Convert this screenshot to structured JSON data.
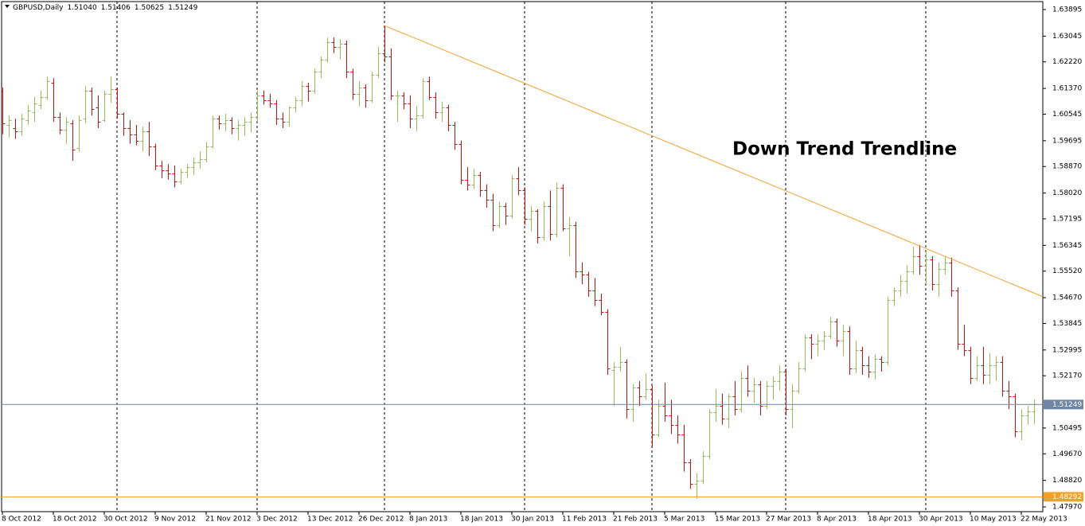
{
  "chart_data": {
    "type": "ohlc",
    "symbol": "GBPUSD,Daily",
    "ohlc_labels": [
      "1.51040",
      "1.51406",
      "1.50625",
      "1.51249"
    ],
    "annotation": "Down Trend Trendline",
    "up_color": "#9bbb59",
    "down_color": "#d01010",
    "ylim": [
      1.47817,
      1.6415
    ],
    "yticks": [
      1.63895,
      1.63045,
      {
        "value": 1.6222,
        "label": "1.62220"
      },
      {
        "value": 1.6137,
        "label": "1.61370"
      },
      1.60545,
      1.59695,
      {
        "value": 1.5887,
        "label": "1.58870"
      },
      {
        "value": 1.5802,
        "label": "1.58020"
      },
      1.57195,
      1.56345,
      {
        "value": 1.5552,
        "label": "1.55520"
      },
      {
        "value": 1.5467,
        "label": "1.54670"
      },
      1.53845,
      1.52995,
      {
        "value": 1.5217,
        "label": "1.52170"
      },
      1.50495,
      {
        "value": 1.4967,
        "label": "1.49670"
      },
      {
        "value": 1.4882,
        "label": "1.48820"
      },
      {
        "value": 1.4797,
        "label": "1.47970"
      }
    ],
    "hlines": [
      {
        "value": 1.51249,
        "color": "#6f86a6"
      },
      {
        "value": 1.48292,
        "color": "#f4a020"
      }
    ],
    "trendline": {
      "points": [
        [
          60,
          1.6338
        ],
        [
          163.4,
          1.547
        ]
      ],
      "color": "#f0a030"
    },
    "separators": [
      18,
      40,
      60,
      82,
      102,
      123,
      145
    ],
    "categories": [
      "8 Oct 2012",
      null,
      null,
      null,
      null,
      null,
      null,
      null,
      "18 Oct 2012",
      null,
      null,
      null,
      null,
      null,
      null,
      null,
      "30 Oct 2012",
      null,
      null,
      null,
      null,
      null,
      null,
      null,
      "9 Nov 2012",
      null,
      null,
      null,
      null,
      null,
      null,
      null,
      "21 Nov 2012",
      null,
      null,
      null,
      null,
      null,
      null,
      null,
      "3 Dec 2012",
      null,
      null,
      null,
      null,
      null,
      null,
      null,
      "13 Dec 2012",
      null,
      null,
      null,
      null,
      null,
      null,
      null,
      "26 Dec 2012",
      null,
      null,
      null,
      null,
      null,
      null,
      null,
      "8 Jan 2013",
      null,
      null,
      null,
      null,
      null,
      null,
      null,
      "18 Jan 2013",
      null,
      null,
      null,
      null,
      null,
      null,
      null,
      "30 Jan 2013",
      null,
      null,
      null,
      null,
      null,
      null,
      null,
      "11 Feb 2013",
      null,
      null,
      null,
      null,
      null,
      null,
      null,
      "21 Feb 2013",
      null,
      null,
      null,
      null,
      null,
      null,
      null,
      "5 Mar 2013",
      null,
      null,
      null,
      null,
      null,
      null,
      null,
      "15 Mar 2013",
      null,
      null,
      null,
      null,
      null,
      null,
      null,
      "27 Mar 2013",
      null,
      null,
      null,
      null,
      null,
      null,
      null,
      "8 Apr 2013",
      null,
      null,
      null,
      null,
      null,
      null,
      null,
      "18 Apr 2013",
      null,
      null,
      null,
      null,
      null,
      null,
      null,
      "30 Apr 2013",
      null,
      null,
      null,
      null,
      null,
      null,
      null,
      "10 May 2013",
      null,
      null,
      null,
      null,
      null,
      null,
      null,
      "22 May 2013",
      null,
      null
    ],
    "open": [
      1.613,
      1.602,
      1.601,
      1.6,
      1.6035,
      1.606,
      1.6085,
      1.611,
      1.6155,
      1.6045,
      1.6005,
      1.6025,
      1.5945,
      1.604,
      1.613,
      1.6075,
      1.6035,
      1.612,
      1.6135,
      1.6055,
      1.601,
      1.599,
      1.597,
      1.6,
      1.595,
      1.589,
      1.5875,
      1.5865,
      1.584,
      1.587,
      1.5885,
      1.59,
      1.591,
      1.595,
      1.604,
      1.6025,
      1.6035,
      1.601,
      1.602,
      1.603,
      1.6045,
      1.6115,
      1.61,
      1.609,
      1.604,
      1.603,
      1.6075,
      1.61,
      1.6145,
      1.613,
      1.619,
      1.623,
      1.6285,
      1.627,
      1.628,
      1.619,
      1.612,
      1.614,
      1.61,
      1.618,
      1.625,
      1.624,
      1.6115,
      1.6115,
      1.609,
      1.604,
      1.605,
      1.616,
      1.611,
      1.606,
      1.6075,
      1.602,
      1.596,
      1.5845,
      1.583,
      1.586,
      1.581,
      1.578,
      1.57,
      1.576,
      1.573,
      1.585,
      1.581,
      1.572,
      1.5745,
      1.566,
      1.576,
      1.567,
      1.582,
      1.569,
      1.57,
      1.555,
      1.554,
      1.549,
      1.546,
      1.542,
      1.5235,
      1.5245,
      1.526,
      1.511,
      1.518,
      1.515,
      1.5175,
      1.503,
      1.512,
      1.509,
      1.506,
      1.503,
      1.494,
      1.487,
      1.488,
      1.496,
      1.51,
      1.512,
      1.508,
      1.515,
      1.511,
      1.521,
      1.517,
      1.519,
      1.512,
      1.5185,
      1.52,
      1.523,
      1.511,
      1.517,
      1.524,
      1.534,
      1.532,
      1.533,
      1.5345,
      1.539,
      1.533,
      1.536,
      1.524,
      1.53,
      1.525,
      1.523,
      1.527,
      1.526,
      1.546,
      1.549,
      1.552,
      1.555,
      1.56,
      1.557,
      1.559,
      1.551,
      1.556,
      1.558,
      1.549,
      1.532,
      1.53,
      1.521,
      1.525,
      1.522,
      1.525,
      1.526,
      1.517,
      1.515,
      1.504,
      1.509,
      1.5104
    ],
    "high": [
      1.614,
      1.605,
      1.604,
      1.6055,
      1.6085,
      1.611,
      1.613,
      1.6175,
      1.617,
      1.606,
      1.6045,
      1.6035,
      1.605,
      1.6145,
      1.614,
      1.6115,
      1.613,
      1.6175,
      1.614,
      1.606,
      1.6035,
      1.602,
      1.6015,
      1.603,
      1.596,
      1.5905,
      1.5895,
      1.589,
      1.588,
      1.5895,
      1.5915,
      1.5935,
      1.5965,
      1.605,
      1.605,
      1.6055,
      1.6045,
      1.6035,
      1.6045,
      1.606,
      1.613,
      1.613,
      1.612,
      1.61,
      1.606,
      1.608,
      1.611,
      1.616,
      1.6155,
      1.62,
      1.624,
      1.63,
      1.63,
      1.6295,
      1.629,
      1.62,
      1.616,
      1.615,
      1.619,
      1.627,
      1.6338,
      1.6265,
      1.613,
      1.6125,
      1.6115,
      1.608,
      1.617,
      1.6175,
      1.6125,
      1.6095,
      1.6085,
      1.603,
      1.597,
      1.5885,
      1.588,
      1.587,
      1.583,
      1.58,
      1.5775,
      1.577,
      1.586,
      1.5885,
      1.582,
      1.576,
      1.575,
      1.5775,
      1.581,
      1.5835,
      1.583,
      1.5725,
      1.571,
      1.558,
      1.555,
      1.553,
      1.548,
      1.543,
      1.526,
      1.531,
      1.527,
      1.519,
      1.52,
      1.5225,
      1.5185,
      1.514,
      1.5195,
      1.514,
      1.509,
      1.506,
      1.495,
      1.4905,
      1.4975,
      1.511,
      1.5175,
      1.516,
      1.516,
      1.52,
      1.523,
      1.525,
      1.521,
      1.52,
      1.52,
      1.5215,
      1.525,
      1.524,
      1.519,
      1.526,
      1.535,
      1.535,
      1.535,
      1.536,
      1.5405,
      1.54,
      1.538,
      1.5375,
      1.533,
      1.531,
      1.528,
      1.5285,
      1.528,
      1.547,
      1.55,
      1.554,
      1.557,
      1.563,
      1.5635,
      1.562,
      1.56,
      1.558,
      1.56,
      1.5595,
      1.55,
      1.538,
      1.531,
      1.528,
      1.531,
      1.529,
      1.528,
      1.528,
      1.52,
      1.516,
      1.511,
      1.512,
      1.51406
    ],
    "low": [
      1.599,
      1.598,
      1.5975,
      1.5985,
      1.602,
      1.603,
      1.607,
      1.61,
      1.603,
      1.599,
      1.596,
      1.5905,
      1.5935,
      1.6025,
      1.605,
      1.601,
      1.603,
      1.609,
      1.604,
      1.5985,
      1.596,
      1.5955,
      1.5935,
      1.592,
      1.5875,
      1.585,
      1.5845,
      1.582,
      1.583,
      1.585,
      1.586,
      1.588,
      1.59,
      1.5945,
      1.6005,
      1.6,
      1.599,
      1.597,
      1.5985,
      1.5995,
      1.603,
      1.6085,
      1.6075,
      1.602,
      1.601,
      1.6015,
      1.606,
      1.608,
      1.6095,
      1.612,
      1.617,
      1.622,
      1.625,
      1.623,
      1.617,
      1.61,
      1.608,
      1.6075,
      1.609,
      1.617,
      1.622,
      1.61,
      1.603,
      1.607,
      1.601,
      1.6,
      1.604,
      1.61,
      1.604,
      1.603,
      1.6,
      1.594,
      1.583,
      1.581,
      1.5815,
      1.579,
      1.5755,
      1.568,
      1.569,
      1.57,
      1.572,
      1.5795,
      1.57,
      1.568,
      1.564,
      1.565,
      1.565,
      1.566,
      1.568,
      1.56,
      1.553,
      1.551,
      1.547,
      1.544,
      1.541,
      1.522,
      1.512,
      1.523,
      1.508,
      1.507,
      1.512,
      1.514,
      1.499,
      1.502,
      1.507,
      1.503,
      1.5,
      1.491,
      1.4855,
      1.4823,
      1.487,
      1.495,
      1.507,
      1.506,
      1.505,
      1.509,
      1.51,
      1.515,
      1.513,
      1.509,
      1.511,
      1.514,
      1.517,
      1.509,
      1.505,
      1.516,
      1.523,
      1.527,
      1.528,
      1.53,
      1.5335,
      1.531,
      1.528,
      1.522,
      1.5225,
      1.522,
      1.521,
      1.5205,
      1.523,
      1.525,
      1.544,
      1.547,
      1.548,
      1.554,
      1.554,
      1.551,
      1.549,
      1.547,
      1.554,
      1.547,
      1.53,
      1.528,
      1.519,
      1.52,
      1.519,
      1.519,
      1.52,
      1.515,
      1.511,
      1.502,
      1.501,
      1.506,
      1.50625
    ],
    "close": [
      1.6025,
      1.6035,
      1.6,
      1.604,
      1.6065,
      1.609,
      1.611,
      1.616,
      1.6045,
      1.6005,
      1.603,
      1.594,
      1.6035,
      1.613,
      1.607,
      1.603,
      1.612,
      1.6135,
      1.6055,
      1.601,
      1.599,
      1.597,
      1.6,
      1.595,
      1.589,
      1.5875,
      1.5865,
      1.584,
      1.587,
      1.5885,
      1.59,
      1.591,
      1.595,
      1.604,
      1.6025,
      1.6035,
      1.601,
      1.602,
      1.603,
      1.6045,
      1.6115,
      1.61,
      1.609,
      1.604,
      1.603,
      1.6075,
      1.61,
      1.6145,
      1.613,
      1.619,
      1.623,
      1.6285,
      1.627,
      1.628,
      1.619,
      1.612,
      1.614,
      1.61,
      1.618,
      1.625,
      1.624,
      1.6115,
      1.6115,
      1.609,
      1.604,
      1.605,
      1.616,
      1.611,
      1.606,
      1.6075,
      1.602,
      1.596,
      1.5845,
      1.583,
      1.586,
      1.581,
      1.578,
      1.57,
      1.576,
      1.573,
      1.585,
      1.581,
      1.572,
      1.5745,
      1.566,
      1.576,
      1.567,
      1.582,
      1.569,
      1.57,
      1.555,
      1.554,
      1.549,
      1.546,
      1.542,
      1.524,
      1.5245,
      1.526,
      1.511,
      1.518,
      1.515,
      1.5175,
      1.503,
      1.512,
      1.509,
      1.506,
      1.503,
      1.494,
      1.487,
      1.488,
      1.496,
      1.51,
      1.512,
      1.508,
      1.515,
      1.511,
      1.521,
      1.517,
      1.519,
      1.512,
      1.5185,
      1.52,
      1.523,
      1.511,
      1.517,
      1.524,
      1.534,
      1.532,
      1.533,
      1.5345,
      1.539,
      1.533,
      1.536,
      1.524,
      1.53,
      1.525,
      1.523,
      1.527,
      1.526,
      1.546,
      1.549,
      1.552,
      1.555,
      1.56,
      1.557,
      1.559,
      1.551,
      1.556,
      1.558,
      1.549,
      1.532,
      1.53,
      1.521,
      1.525,
      1.522,
      1.525,
      1.526,
      1.517,
      1.515,
      1.504,
      1.509,
      1.5104,
      1.51249
    ]
  }
}
